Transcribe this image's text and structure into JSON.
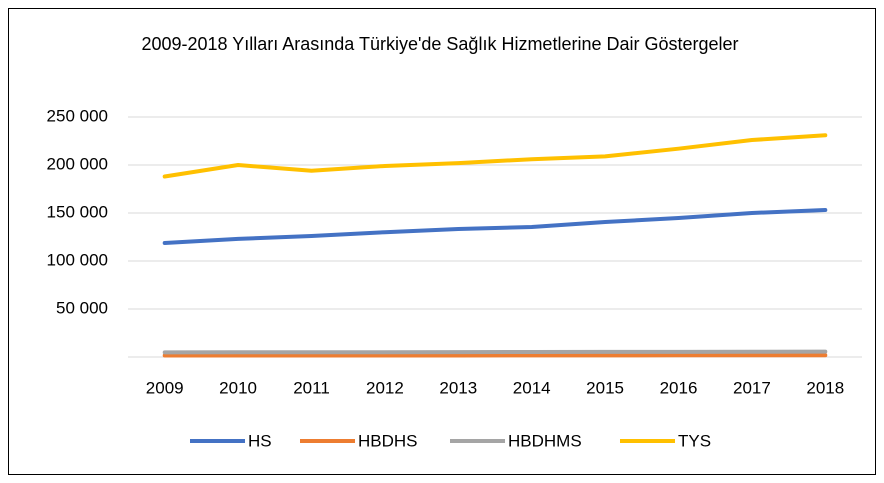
{
  "chart_data": {
    "type": "line",
    "title": "2009-2018 Yılları Arasında Türkiye'de Sağlık Hizmetlerine Dair Göstergeler",
    "categories": [
      "2009",
      "2010",
      "2011",
      "2012",
      "2013",
      "2014",
      "2015",
      "2016",
      "2017",
      "2018"
    ],
    "series": [
      {
        "name": "HS",
        "color": "#4472c4",
        "values": [
          118700,
          123000,
          126000,
          130000,
          133300,
          135400,
          140600,
          144800,
          150000,
          153100
        ]
      },
      {
        "name": "HBDHS",
        "color": "#ed7d31",
        "values": [
          1500,
          1500,
          1500,
          1600,
          1600,
          1700,
          1700,
          1800,
          1800,
          1800
        ]
      },
      {
        "name": "HBDHMS",
        "color": "#a5a5a5",
        "values": [
          4800,
          4900,
          5000,
          5000,
          5100,
          5200,
          5300,
          5400,
          5500,
          5600
        ]
      },
      {
        "name": "TYS",
        "color": "#ffc000",
        "values": [
          188000,
          200000,
          194000,
          199000,
          202000,
          206000,
          209000,
          217000,
          226000,
          231000
        ]
      }
    ],
    "ylim": [
      0,
      250000
    ],
    "yticks": [
      {
        "value": 50000,
        "label": "50 000"
      },
      {
        "value": 100000,
        "label": "100 000"
      },
      {
        "value": 150000,
        "label": "150 000"
      },
      {
        "value": 200000,
        "label": "200 000"
      },
      {
        "value": 250000,
        "label": "250 000"
      }
    ],
    "grid": true,
    "legend": "bottom"
  }
}
